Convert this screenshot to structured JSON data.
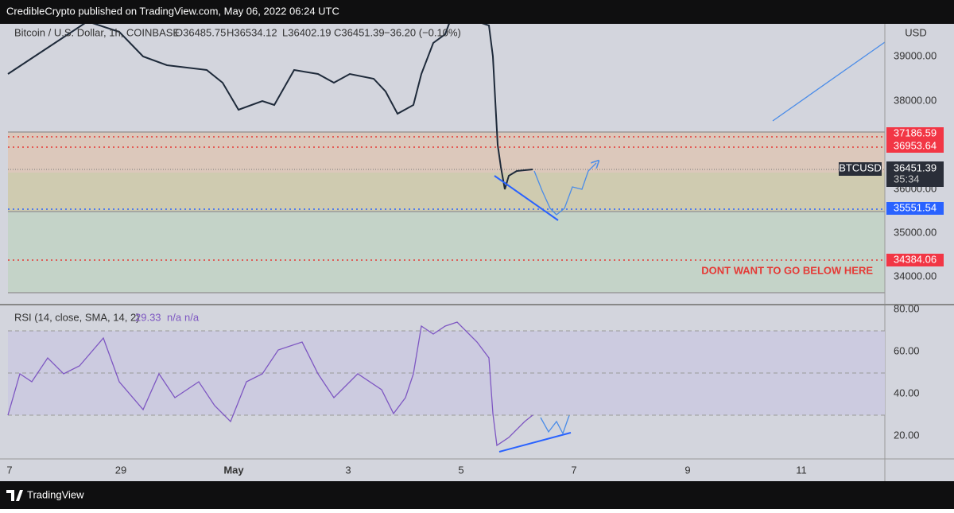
{
  "header": {
    "text": "CredibleCrypto published on TradingView.com, May 06, 2022 06:24 UTC"
  },
  "legend": {
    "symbol": "Bitcoin / U.S. Dollar, 1h, COINBASE",
    "open": "O36485.75",
    "high": "H36534.12",
    "low": "L36402.19",
    "close": "C36451.39",
    "change": "−36.20 (−0.10%)"
  },
  "price_axis": {
    "unit": "USD",
    "ticks": [
      "39000.00",
      "38000.00",
      "36000.00",
      "35000.00",
      "34000.00"
    ]
  },
  "price_labels": {
    "level1": "37186.59",
    "level2": "36953.64",
    "last": "36451.39",
    "countdown": "35:34",
    "symbol_tag": "BTCUSD",
    "level3": "35551.54",
    "level4": "34384.06"
  },
  "annotation": "DONT WANT TO GO BELOW HERE",
  "rsi": {
    "label": "RSI (14, close, SMA, 14, 2)",
    "value": "29.33",
    "na1": "n/a",
    "na2": "n/a",
    "ticks": [
      "80.00",
      "60.00",
      "40.00",
      "20.00"
    ]
  },
  "time_axis": [
    "7",
    "29",
    "May",
    "3",
    "5",
    "7",
    "9",
    "11"
  ],
  "footer": {
    "brand": "TradingView"
  }
}
